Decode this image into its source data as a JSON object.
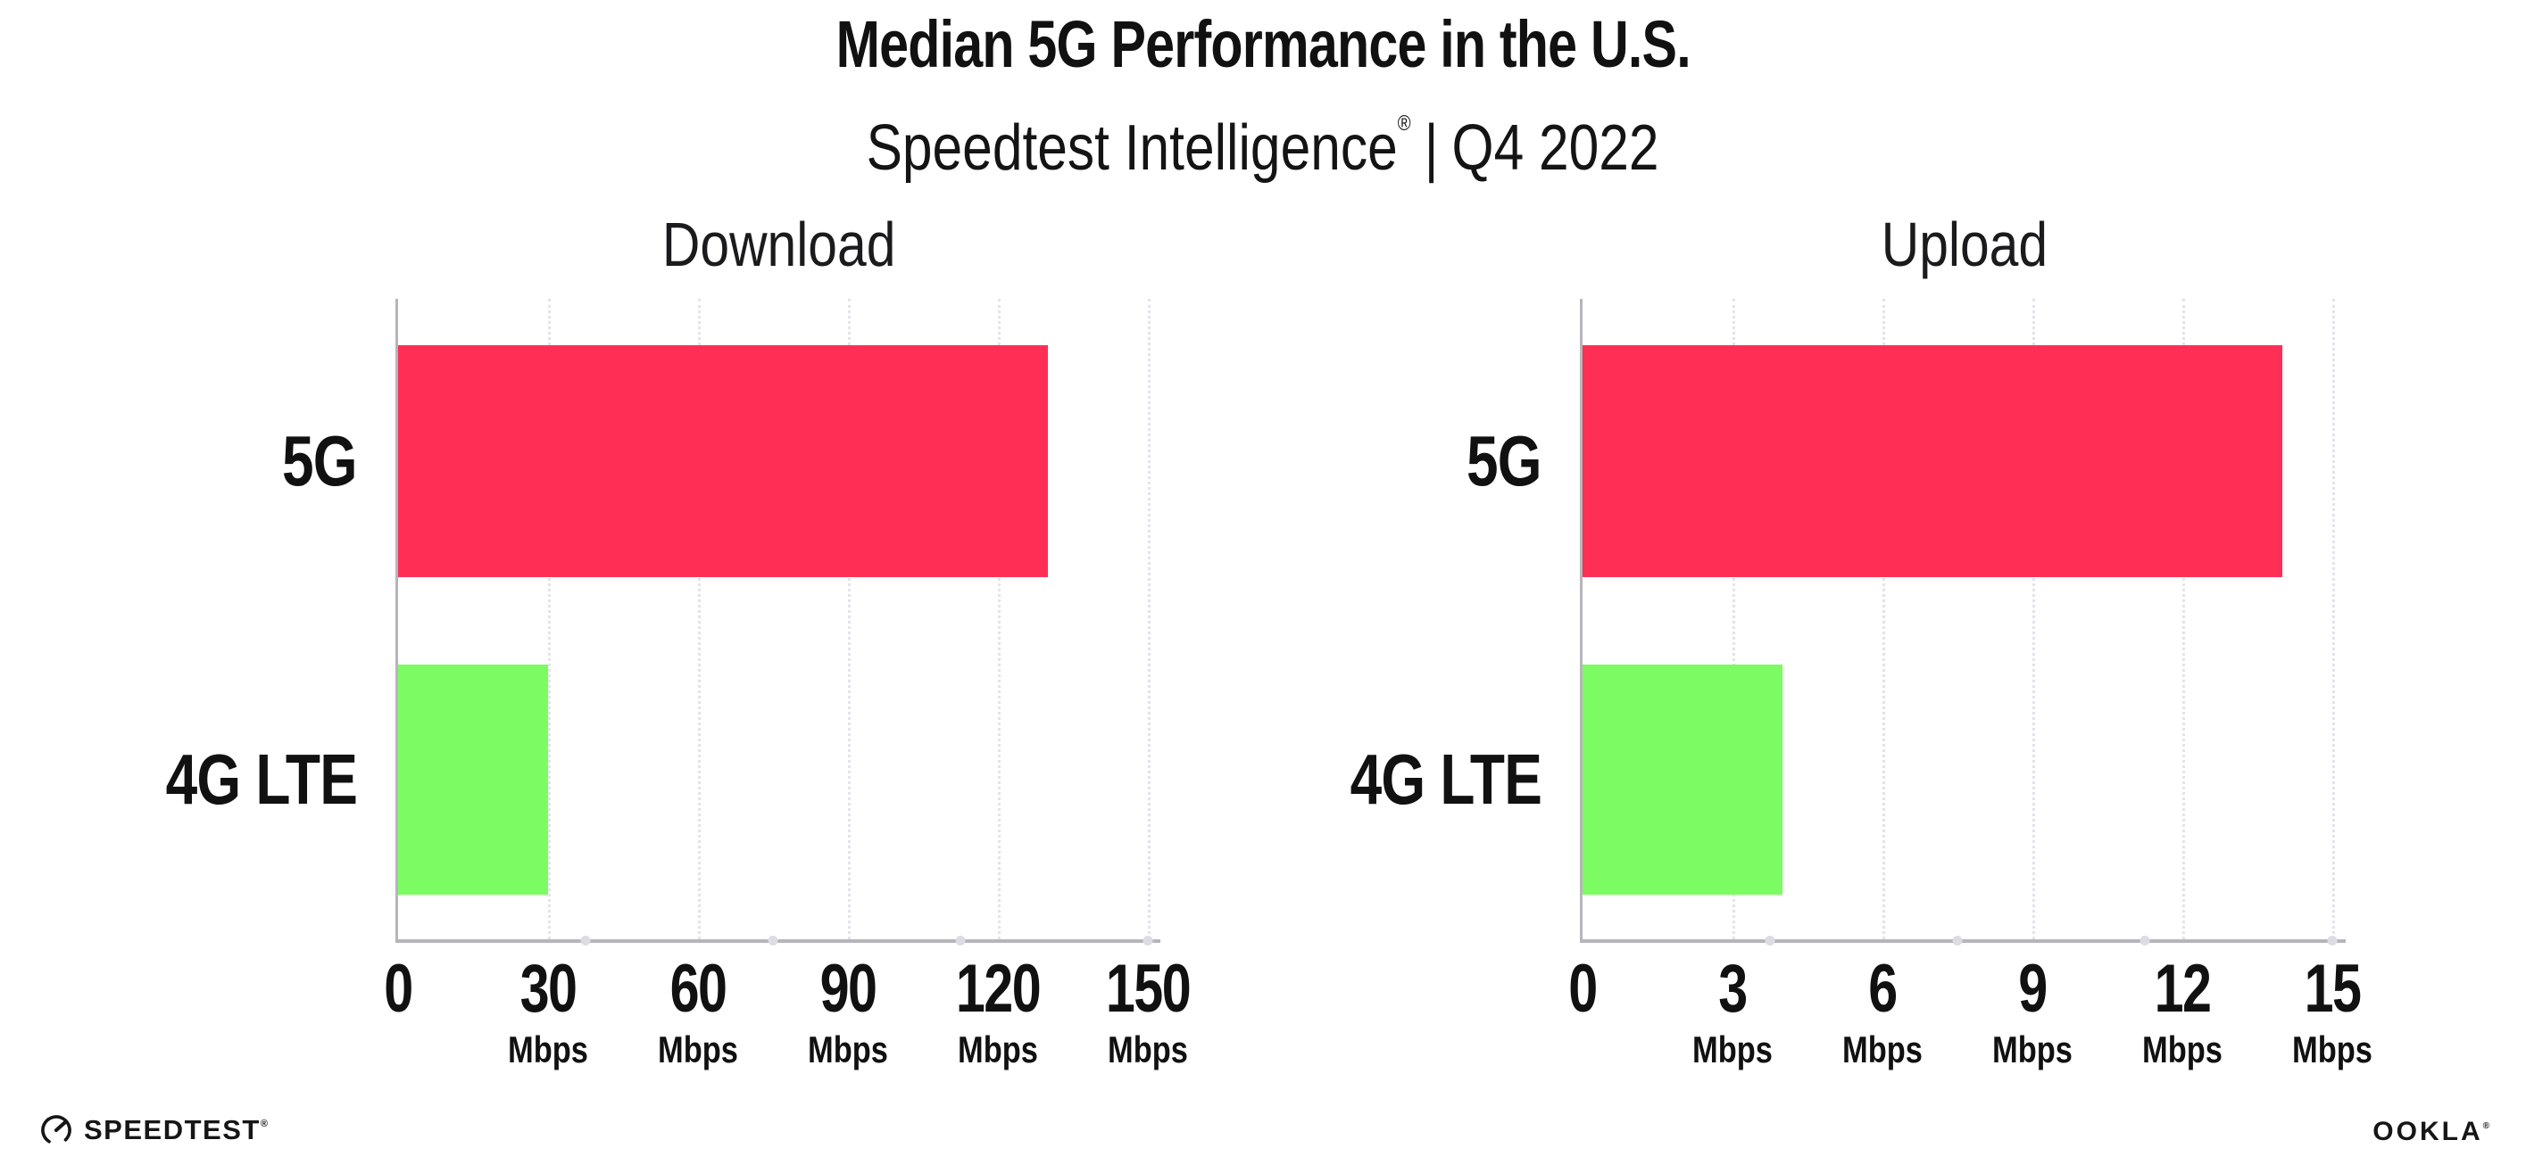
{
  "header": {
    "title": "Median 5G Performance in the U.S.",
    "subtitle": {
      "brand": "Speedtest Intelligence",
      "registered": "®",
      "separator": "|",
      "period": "Q4 2022"
    }
  },
  "chart_data": [
    {
      "type": "bar",
      "orientation": "horizontal",
      "title": "Download",
      "unit": "Mbps",
      "categories": [
        "5G",
        "4G LTE"
      ],
      "values": [
        130,
        30
      ],
      "xlim": [
        0,
        150
      ],
      "xticks": [
        0,
        30,
        60,
        90,
        120,
        150
      ],
      "bar_colors": [
        "#ff2e55",
        "#7dfb63"
      ],
      "grid": "dotted-vertical",
      "legend": "none"
    },
    {
      "type": "bar",
      "orientation": "horizontal",
      "title": "Upload",
      "unit": "Mbps",
      "categories": [
        "5G",
        "4G LTE"
      ],
      "values": [
        14,
        4
      ],
      "xlim": [
        0,
        15
      ],
      "xticks": [
        0,
        3,
        6,
        9,
        12,
        15
      ],
      "bar_colors": [
        "#ff2e55",
        "#7dfb63"
      ],
      "grid": "dotted-vertical",
      "legend": "none"
    }
  ],
  "colors": {
    "bar_5g": "#ff2e55",
    "bar_4g_lte": "#7dfb63",
    "axis": "#b5b5bb",
    "gridline": "#e3e3e9",
    "text": "#111111"
  },
  "footer": {
    "speedtest_wordmark": "SPEEDTEST",
    "speedtest_trademark": "®",
    "speedtest_icon": "speedtest-gauge-icon",
    "ookla_wordmark": "OOKLA",
    "ookla_trademark": "®"
  }
}
